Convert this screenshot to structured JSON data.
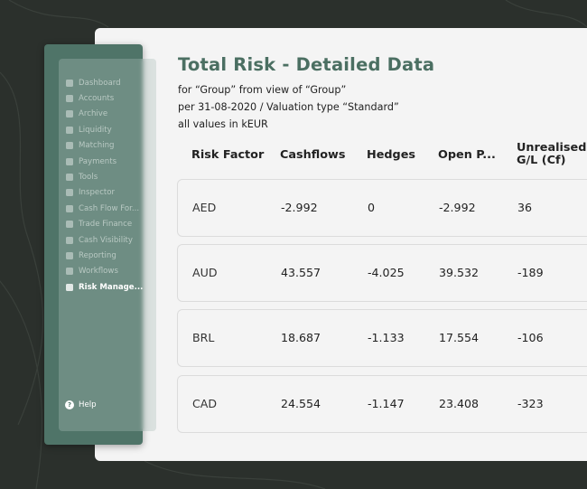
{
  "title": "Total Risk - Detailed Data",
  "subtitle_lines": [
    "for “Group” from view of “Group”",
    "per 31-08-2020 / Valuation type “Standard”",
    "all values in kEUR"
  ],
  "sidebar": {
    "items": [
      {
        "label": "Dashboard",
        "icon": "dashboard-icon"
      },
      {
        "label": "Accounts",
        "icon": "accounts-icon"
      },
      {
        "label": "Archive",
        "icon": "archive-icon"
      },
      {
        "label": "Liquidity",
        "icon": "liquidity-icon"
      },
      {
        "label": "Matching",
        "icon": "matching-icon"
      },
      {
        "label": "Payments",
        "icon": "payments-icon"
      },
      {
        "label": "Tools",
        "icon": "gear-icon"
      },
      {
        "label": "Inspector",
        "icon": "inspector-icon"
      },
      {
        "label": "Cash Flow For...",
        "icon": "cashflow-icon"
      },
      {
        "label": "Trade Finance",
        "icon": "trade-finance-icon"
      },
      {
        "label": "Cash Visibility",
        "icon": "cash-visibility-icon"
      },
      {
        "label": "Reporting",
        "icon": "reporting-icon"
      },
      {
        "label": "Workflows",
        "icon": "workflows-icon"
      },
      {
        "label": "Risk Manage...",
        "icon": "risk-management-icon",
        "active": true
      }
    ],
    "help_label": "Help"
  },
  "table": {
    "headers": [
      "Risk Factor",
      "Cashflows",
      "Hedges",
      "Open P...",
      "Unrealised G/L (Cf)"
    ],
    "header_last_lines": [
      "Unrealised",
      "G/L (Cf)"
    ],
    "rows": [
      [
        "AED",
        "-2.992",
        "0",
        "-2.992",
        "36"
      ],
      [
        "AUD",
        "43.557",
        "-4.025",
        "39.532",
        "-189"
      ],
      [
        "BRL",
        "18.687",
        "-1.133",
        "17.554",
        "-106"
      ],
      [
        "CAD",
        "24.554",
        "-1.147",
        "23.408",
        "-323"
      ]
    ]
  },
  "colors": {
    "accent": "#4b6f62",
    "sidebar": "#4f7468",
    "background": "#2b302c"
  }
}
